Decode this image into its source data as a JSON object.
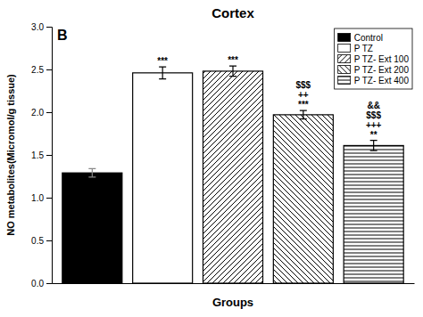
{
  "chart_data": {
    "type": "bar",
    "title": "Cortex",
    "xlabel": "Groups",
    "ylabel": "NO metabolites(Micromol/g tissue)",
    "panel_label": "B",
    "categories": [
      "Control",
      "P TZ",
      "P TZ- Ext 100",
      "P TZ- Ext 200",
      "P TZ- Ext 400"
    ],
    "values": [
      1.29,
      2.46,
      2.48,
      1.97,
      1.61
    ],
    "errors": [
      0.05,
      0.07,
      0.06,
      0.05,
      0.06
    ],
    "annotations": [
      null,
      [
        "***"
      ],
      [
        "***"
      ],
      [
        "$$$",
        "++",
        "***"
      ],
      [
        "&&",
        "$$$",
        "+++",
        "**"
      ]
    ],
    "colors": [
      "black",
      "white",
      "white",
      "white",
      "white"
    ],
    "ylim": [
      0,
      3
    ],
    "yticks": [
      {
        "value": 0,
        "label": "0.0"
      },
      0.5,
      {
        "value": 1,
        "label": "1.0"
      },
      1.5,
      {
        "value": 2,
        "label": "2.0"
      },
      2.5,
      {
        "value": 3,
        "label": "3.0"
      }
    ],
    "grid": false,
    "legend": "upper right",
    "tick_labels": "y"
  }
}
